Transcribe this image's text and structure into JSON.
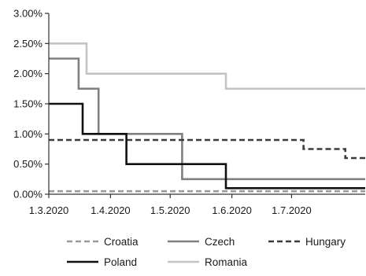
{
  "chart_data": {
    "type": "line",
    "title": "",
    "xlabel": "",
    "ylabel": "",
    "ylim": [
      0,
      3.0
    ],
    "yticks": [
      0,
      0.5,
      1.0,
      1.5,
      2.0,
      2.5,
      3.0
    ],
    "ytick_labels": [
      "0.00%",
      "0.50%",
      "1.00%",
      "1.50%",
      "2.00%",
      "2.50%",
      "3.00%"
    ],
    "x_range": [
      "2020-03-01",
      "2020-08-07"
    ],
    "xticks": [
      "2020-03-01",
      "2020-04-01",
      "2020-05-01",
      "2020-06-01",
      "2020-07-01"
    ],
    "xtick_labels": [
      "1.3.2020",
      "1.4.2020",
      "1.5.2020",
      "1.6.2020",
      "1.7.2020"
    ],
    "grid": false,
    "legend_position": "bottom",
    "series": [
      {
        "name": "Croatia",
        "color": "#9a9a9a",
        "style": "dashed",
        "points": [
          [
            "2020-03-01",
            0.05
          ],
          [
            "2020-08-07",
            0.05
          ]
        ]
      },
      {
        "name": "Czech",
        "color": "#808080",
        "style": "solid",
        "points": [
          [
            "2020-03-01",
            2.25
          ],
          [
            "2020-03-16",
            2.25
          ],
          [
            "2020-03-16",
            1.75
          ],
          [
            "2020-03-26",
            1.75
          ],
          [
            "2020-03-26",
            1.0
          ],
          [
            "2020-05-07",
            1.0
          ],
          [
            "2020-05-07",
            0.25
          ],
          [
            "2020-08-07",
            0.25
          ]
        ]
      },
      {
        "name": "Hungary",
        "color": "#3c3c3c",
        "style": "dashed",
        "points": [
          [
            "2020-03-01",
            0.9
          ],
          [
            "2020-07-07",
            0.9
          ],
          [
            "2020-07-07",
            0.75
          ],
          [
            "2020-07-28",
            0.75
          ],
          [
            "2020-07-28",
            0.6
          ],
          [
            "2020-08-07",
            0.6
          ]
        ]
      },
      {
        "name": "Poland",
        "color": "#111111",
        "style": "solid",
        "points": [
          [
            "2020-03-01",
            1.5
          ],
          [
            "2020-03-18",
            1.5
          ],
          [
            "2020-03-18",
            1.0
          ],
          [
            "2020-04-09",
            1.0
          ],
          [
            "2020-04-09",
            0.5
          ],
          [
            "2020-05-29",
            0.5
          ],
          [
            "2020-05-29",
            0.1
          ],
          [
            "2020-08-07",
            0.1
          ]
        ]
      },
      {
        "name": "Romania",
        "color": "#c4c4c4",
        "style": "solid",
        "points": [
          [
            "2020-03-01",
            2.5
          ],
          [
            "2020-03-20",
            2.5
          ],
          [
            "2020-03-20",
            2.0
          ],
          [
            "2020-05-29",
            2.0
          ],
          [
            "2020-05-29",
            1.75
          ],
          [
            "2020-08-07",
            1.75
          ]
        ]
      }
    ]
  }
}
